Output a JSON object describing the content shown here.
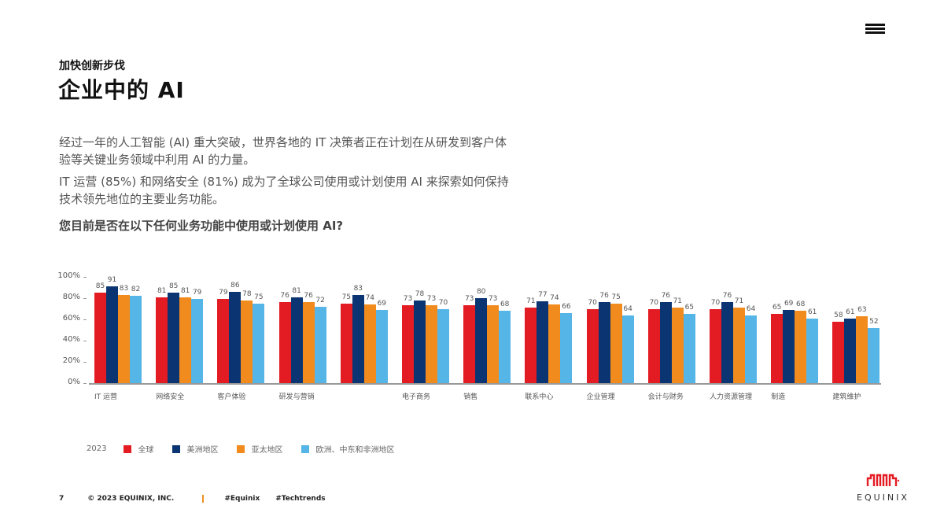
{
  "header": {
    "menu_icon": "hamburger-menu-icon",
    "eyebrow": "加快创新步伐",
    "title": "企业中的 AI"
  },
  "body": {
    "paragraph1": "经过一年的人工智能 (AI) 重大突破，世界各地的 IT 决策者正在计划在从研发到客户体验等关键业务领域中利用 AI 的力量。",
    "paragraph2": "IT 运营 (85%) 和网络安全 (81%) 成为了全球公司使用或计划使用 AI 来探索如何保持技术领先地位的主要业务功能。",
    "question": "您目前是否在以下任何业务功能中使用或计划使用 AI?"
  },
  "legend": {
    "year": "2023",
    "items": [
      {
        "label": "全球",
        "color": "#e31b23"
      },
      {
        "label": "美洲地区",
        "color": "#0b3572"
      },
      {
        "label": "亚太地区",
        "color": "#f28b1e"
      },
      {
        "label": "欧洲、中东和非洲地区",
        "color": "#55b5e6"
      }
    ]
  },
  "footer": {
    "page": "7",
    "copyright": "© 2023 EQUINIX, INC.",
    "tags": [
      "#Equinix",
      "#Techtrends"
    ]
  },
  "logo": {
    "word": "EQUINIX",
    "color": "#e31b23"
  },
  "chart_data": {
    "type": "bar",
    "title": "您目前是否在以下任何业务功能中使用或计划使用 AI?",
    "xlabel": "",
    "ylabel": "",
    "ylim": [
      0,
      100
    ],
    "yticks": [
      "0%",
      "20%",
      "40%",
      "60%",
      "80%",
      "100%"
    ],
    "grid": false,
    "legend_position": "bottom",
    "categories": [
      "IT 运营",
      "网络安全",
      "客户体验",
      "研发与营销",
      "",
      "电子商务",
      "销售",
      "联系中心",
      "企业管理",
      "会计与财务",
      "人力资源管理",
      "制造",
      "建筑维护"
    ],
    "series": [
      {
        "name": "全球",
        "color": "#e31b23",
        "values": [
          85,
          81,
          79,
          76,
          75,
          73,
          73,
          71,
          70,
          70,
          70,
          65,
          58
        ]
      },
      {
        "name": "美洲地区",
        "color": "#0b3572",
        "values": [
          91,
          85,
          86,
          81,
          83,
          78,
          80,
          77,
          76,
          76,
          76,
          69,
          61
        ]
      },
      {
        "name": "亚太地区",
        "color": "#f28b1e",
        "values": [
          83,
          81,
          78,
          76,
          74,
          73,
          73,
          74,
          75,
          71,
          71,
          68,
          63
        ]
      },
      {
        "name": "欧洲、中东和非洲地区",
        "color": "#55b5e6",
        "values": [
          82,
          79,
          75,
          72,
          69,
          70,
          68,
          66,
          64,
          65,
          64,
          61,
          52
        ]
      }
    ]
  }
}
